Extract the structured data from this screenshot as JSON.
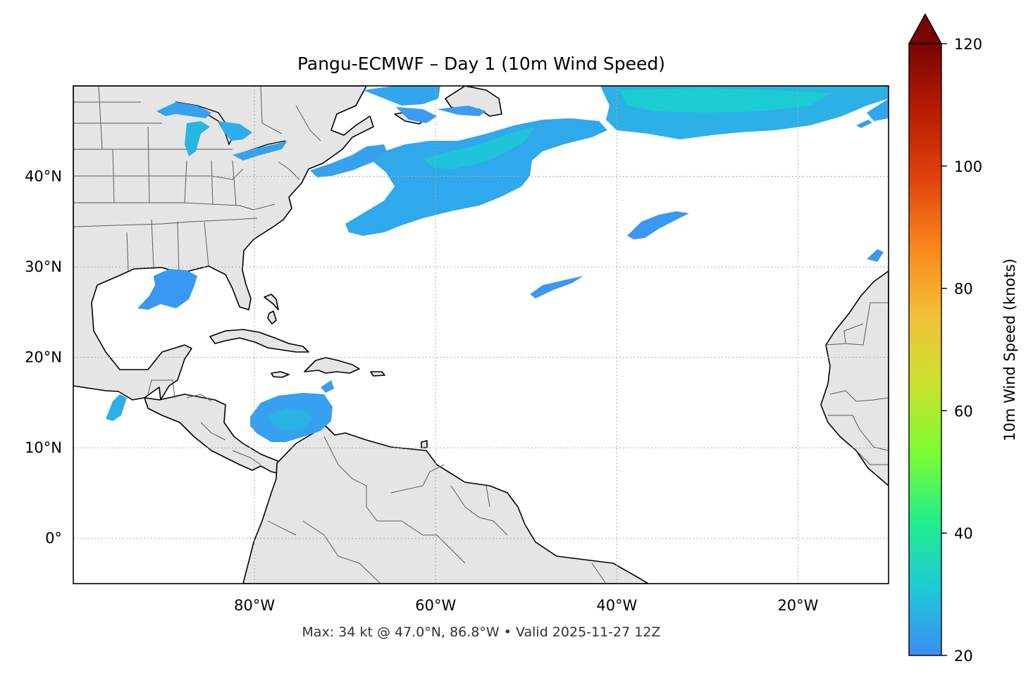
{
  "title": "Pangu-ECMWF – Day 1 (10m Wind Speed)",
  "footer": "Max: 34 kt @ 47.0°N, 86.8°W • Valid 2025-11-27 12Z",
  "map": {
    "lon_range": [
      -100,
      -10
    ],
    "lat_range": [
      -5,
      50
    ],
    "lat_ticks": [
      {
        "value": 40,
        "label": "40°N"
      },
      {
        "value": 30,
        "label": "30°N"
      },
      {
        "value": 20,
        "label": "20°N"
      },
      {
        "value": 10,
        "label": "10°N"
      },
      {
        "value": 0,
        "label": "0°"
      }
    ],
    "lon_ticks": [
      {
        "value": -80,
        "label": "80°W"
      },
      {
        "value": -60,
        "label": "60°W"
      },
      {
        "value": -40,
        "label": "40°W"
      },
      {
        "value": -20,
        "label": "20°W"
      }
    ],
    "gridlines": true,
    "land_color": "#e5e5e5",
    "ocean_color": "#ffffff"
  },
  "colorbar": {
    "label": "10m Wind Speed (knots)",
    "min": 20,
    "max": 120,
    "extend": "max",
    "ticks": [
      {
        "value": 20,
        "label": "20"
      },
      {
        "value": 40,
        "label": "40"
      },
      {
        "value": 60,
        "label": "60"
      },
      {
        "value": 80,
        "label": "80"
      },
      {
        "value": 100,
        "label": "100"
      },
      {
        "value": 120,
        "label": "120"
      }
    ],
    "colormap": [
      "#3b8cf5",
      "#1fc9d6",
      "#22ee8a",
      "#7cfc33",
      "#c8e22e",
      "#f2c23a",
      "#fb8a1e",
      "#e0420c",
      "#b81c04",
      "#7a0403"
    ]
  }
}
